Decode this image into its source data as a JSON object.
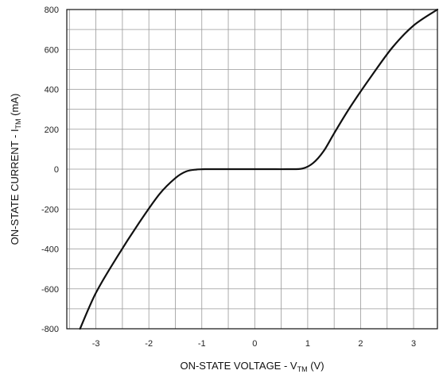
{
  "chart_data": {
    "type": "line",
    "title": "",
    "xlabel_main": "ON-STATE VOLTAGE - V",
    "xlabel_sub": "TM",
    "xlabel_unit": " (V)",
    "ylabel_main": "ON-STATE CURRENT - I",
    "ylabel_sub": "TM",
    "ylabel_unit": " (mA)",
    "xlim": [
      -3.55,
      3.45
    ],
    "ylim": [
      -800,
      800
    ],
    "x_ticks": [
      -3,
      -2,
      -1,
      0,
      1,
      2,
      3
    ],
    "y_ticks": [
      -800,
      -600,
      -400,
      -200,
      0,
      200,
      400,
      600,
      800
    ],
    "x_tick_labels": [
      "-3",
      "-2",
      "-1",
      "0",
      "1",
      "2",
      "3"
    ],
    "y_tick_labels": [
      "-800",
      "-600",
      "-400",
      "-200",
      "0",
      "200",
      "400",
      "600",
      "800"
    ],
    "grid": true,
    "series": [
      {
        "x": [
          -3.3,
          -3.0,
          -2.6,
          -2.2,
          -1.8,
          -1.5,
          -1.3,
          -1.1,
          -0.9,
          -0.6,
          -0.3,
          0.0,
          0.3,
          0.6,
          0.9,
          1.1,
          1.3,
          1.5,
          1.8,
          2.2,
          2.6,
          3.0,
          3.45
        ],
        "y": [
          -800,
          -620,
          -440,
          -275,
          -125,
          -45,
          -12,
          -2,
          0,
          0,
          0,
          0,
          0,
          0,
          3,
          30,
          90,
          180,
          310,
          465,
          610,
          720,
          800
        ]
      }
    ]
  }
}
